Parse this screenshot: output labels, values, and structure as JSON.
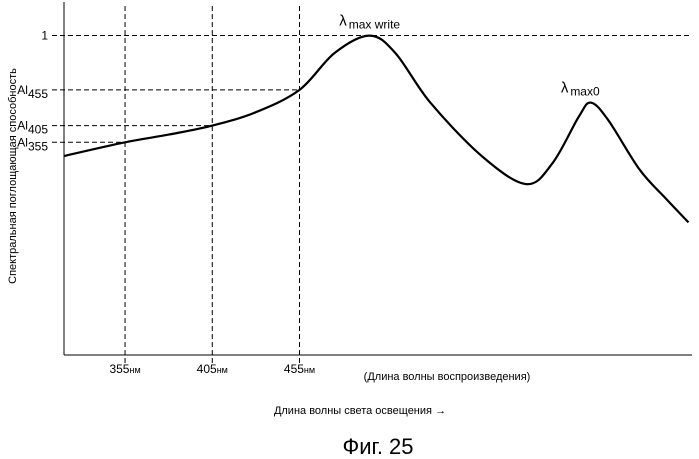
{
  "figure": {
    "caption": "Фиг. 25"
  },
  "chart_data": {
    "type": "line",
    "ylabel": "Спектральная поглощающая способность",
    "xlabel": "Длина волны света освещения",
    "xlabel_arrow": "→",
    "x_secondary_label": "(Длина волны воспроизведения)",
    "x_unit": "нм",
    "x_ticks": [
      355,
      405,
      455
    ],
    "xlim": [
      320,
      680
    ],
    "ylim": [
      0,
      1.08
    ],
    "y_ticks": [
      {
        "value": 1.0,
        "label": "1"
      },
      {
        "value": 0.83,
        "label": "Al",
        "sub": "455"
      },
      {
        "value": 0.718,
        "label": "Al",
        "sub": "405"
      },
      {
        "value": 0.666,
        "label": "Al",
        "sub": "355"
      }
    ],
    "annotations": [
      {
        "label": "λ",
        "sub": "max write",
        "x": 495,
        "y": 1.0
      },
      {
        "label": "λ",
        "sub": "max0",
        "x": 622,
        "y": 0.79
      }
    ],
    "series": [
      {
        "x": [
          320,
          355,
          380,
          405,
          430,
          455,
          475,
          495,
          510,
          530,
          560,
          585,
          600,
          615,
          622,
          632,
          650,
          665,
          678
        ],
        "y": [
          0.623,
          0.666,
          0.69,
          0.718,
          0.76,
          0.83,
          0.945,
          1.0,
          0.945,
          0.79,
          0.62,
          0.535,
          0.6,
          0.745,
          0.79,
          0.735,
          0.58,
          0.49,
          0.415
        ]
      }
    ]
  }
}
